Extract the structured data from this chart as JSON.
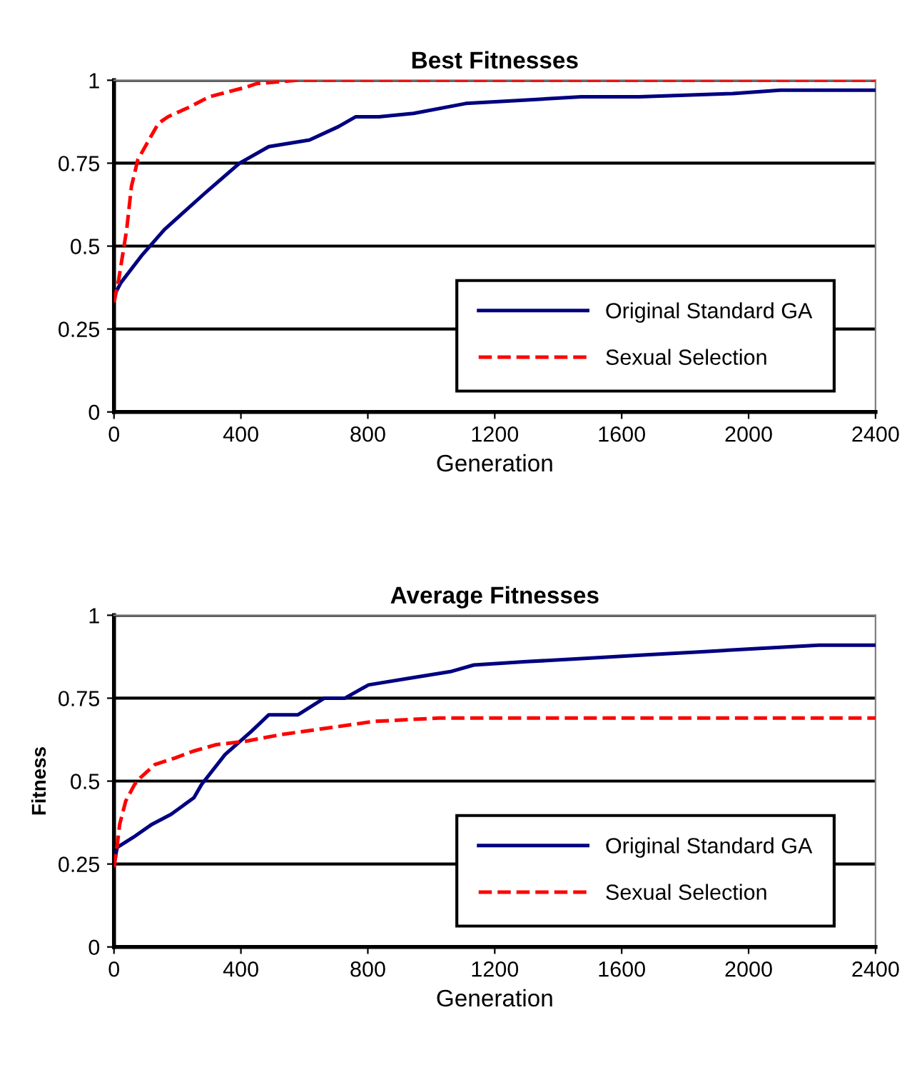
{
  "chart_data": [
    {
      "type": "line",
      "title": "Best Fitnesses",
      "xlabel": "Generation",
      "xlim": [
        0,
        2400
      ],
      "xticks": [
        0,
        400,
        800,
        1200,
        1600,
        2000,
        2400
      ],
      "ylim": [
        0,
        1
      ],
      "yticks": [
        0,
        0.25,
        0.5,
        0.75,
        1
      ],
      "grid": "y",
      "legend": "bottom right",
      "marker": "none",
      "series": [
        {
          "name": "Original Standard GA",
          "color": "#000080",
          "line_style": "solid",
          "x": [
            0,
            22,
            86,
            159,
            287,
            396,
            488,
            616,
            707,
            762,
            835,
            944,
            1109,
            1291,
            1473,
            1655,
            1950,
            2100,
            2400
          ],
          "values": [
            0.35,
            0.39,
            0.47,
            0.55,
            0.66,
            0.75,
            0.8,
            0.82,
            0.86,
            0.89,
            0.89,
            0.9,
            0.93,
            0.94,
            0.95,
            0.95,
            0.96,
            0.97,
            0.97
          ]
        },
        {
          "name": "Sexual Selection",
          "color": "#ff0000",
          "line_style": "dashed",
          "x": [
            0,
            15,
            40,
            55,
            75,
            110,
            140,
            170,
            240,
            300,
            340,
            420,
            450,
            580,
            2400
          ],
          "values": [
            0.33,
            0.4,
            0.55,
            0.68,
            0.76,
            0.82,
            0.87,
            0.89,
            0.92,
            0.95,
            0.96,
            0.98,
            0.99,
            1.0,
            1.0
          ]
        }
      ]
    },
    {
      "type": "line",
      "title": "Average Fitnesses",
      "xlabel": "Generation",
      "ylabel": "Fitness",
      "xlim": [
        0,
        2400
      ],
      "xticks": [
        0,
        400,
        800,
        1200,
        1600,
        2000,
        2400
      ],
      "ylim": [
        0,
        1
      ],
      "yticks": [
        0,
        0.25,
        0.5,
        0.75,
        1
      ],
      "grid": "y",
      "legend": "bottom right",
      "marker": "none",
      "series": [
        {
          "name": "Original Standard GA",
          "color": "#000080",
          "line_style": "solid",
          "x": [
            0,
            10,
            60,
            120,
            180,
            252,
            276,
            350,
            433,
            488,
            580,
            663,
            728,
            802,
            931,
            1060,
            1134,
            1300,
            1484,
            1668,
            1853,
            2037,
            2222,
            2400
          ],
          "values": [
            0.25,
            0.3,
            0.33,
            0.37,
            0.4,
            0.45,
            0.49,
            0.58,
            0.65,
            0.7,
            0.7,
            0.75,
            0.75,
            0.79,
            0.81,
            0.83,
            0.85,
            0.86,
            0.87,
            0.88,
            0.89,
            0.9,
            0.91,
            0.91
          ]
        },
        {
          "name": "Sexual Selection",
          "color": "#ff0000",
          "line_style": "dashed",
          "x": [
            0,
            8,
            18,
            37,
            65,
            83,
            129,
            193,
            249,
            323,
            415,
            525,
            673,
            820,
            1023,
            1300,
            2400
          ],
          "values": [
            0.24,
            0.29,
            0.37,
            0.44,
            0.49,
            0.51,
            0.55,
            0.57,
            0.59,
            0.61,
            0.62,
            0.64,
            0.66,
            0.68,
            0.69,
            0.69,
            0.69
          ]
        }
      ]
    }
  ]
}
